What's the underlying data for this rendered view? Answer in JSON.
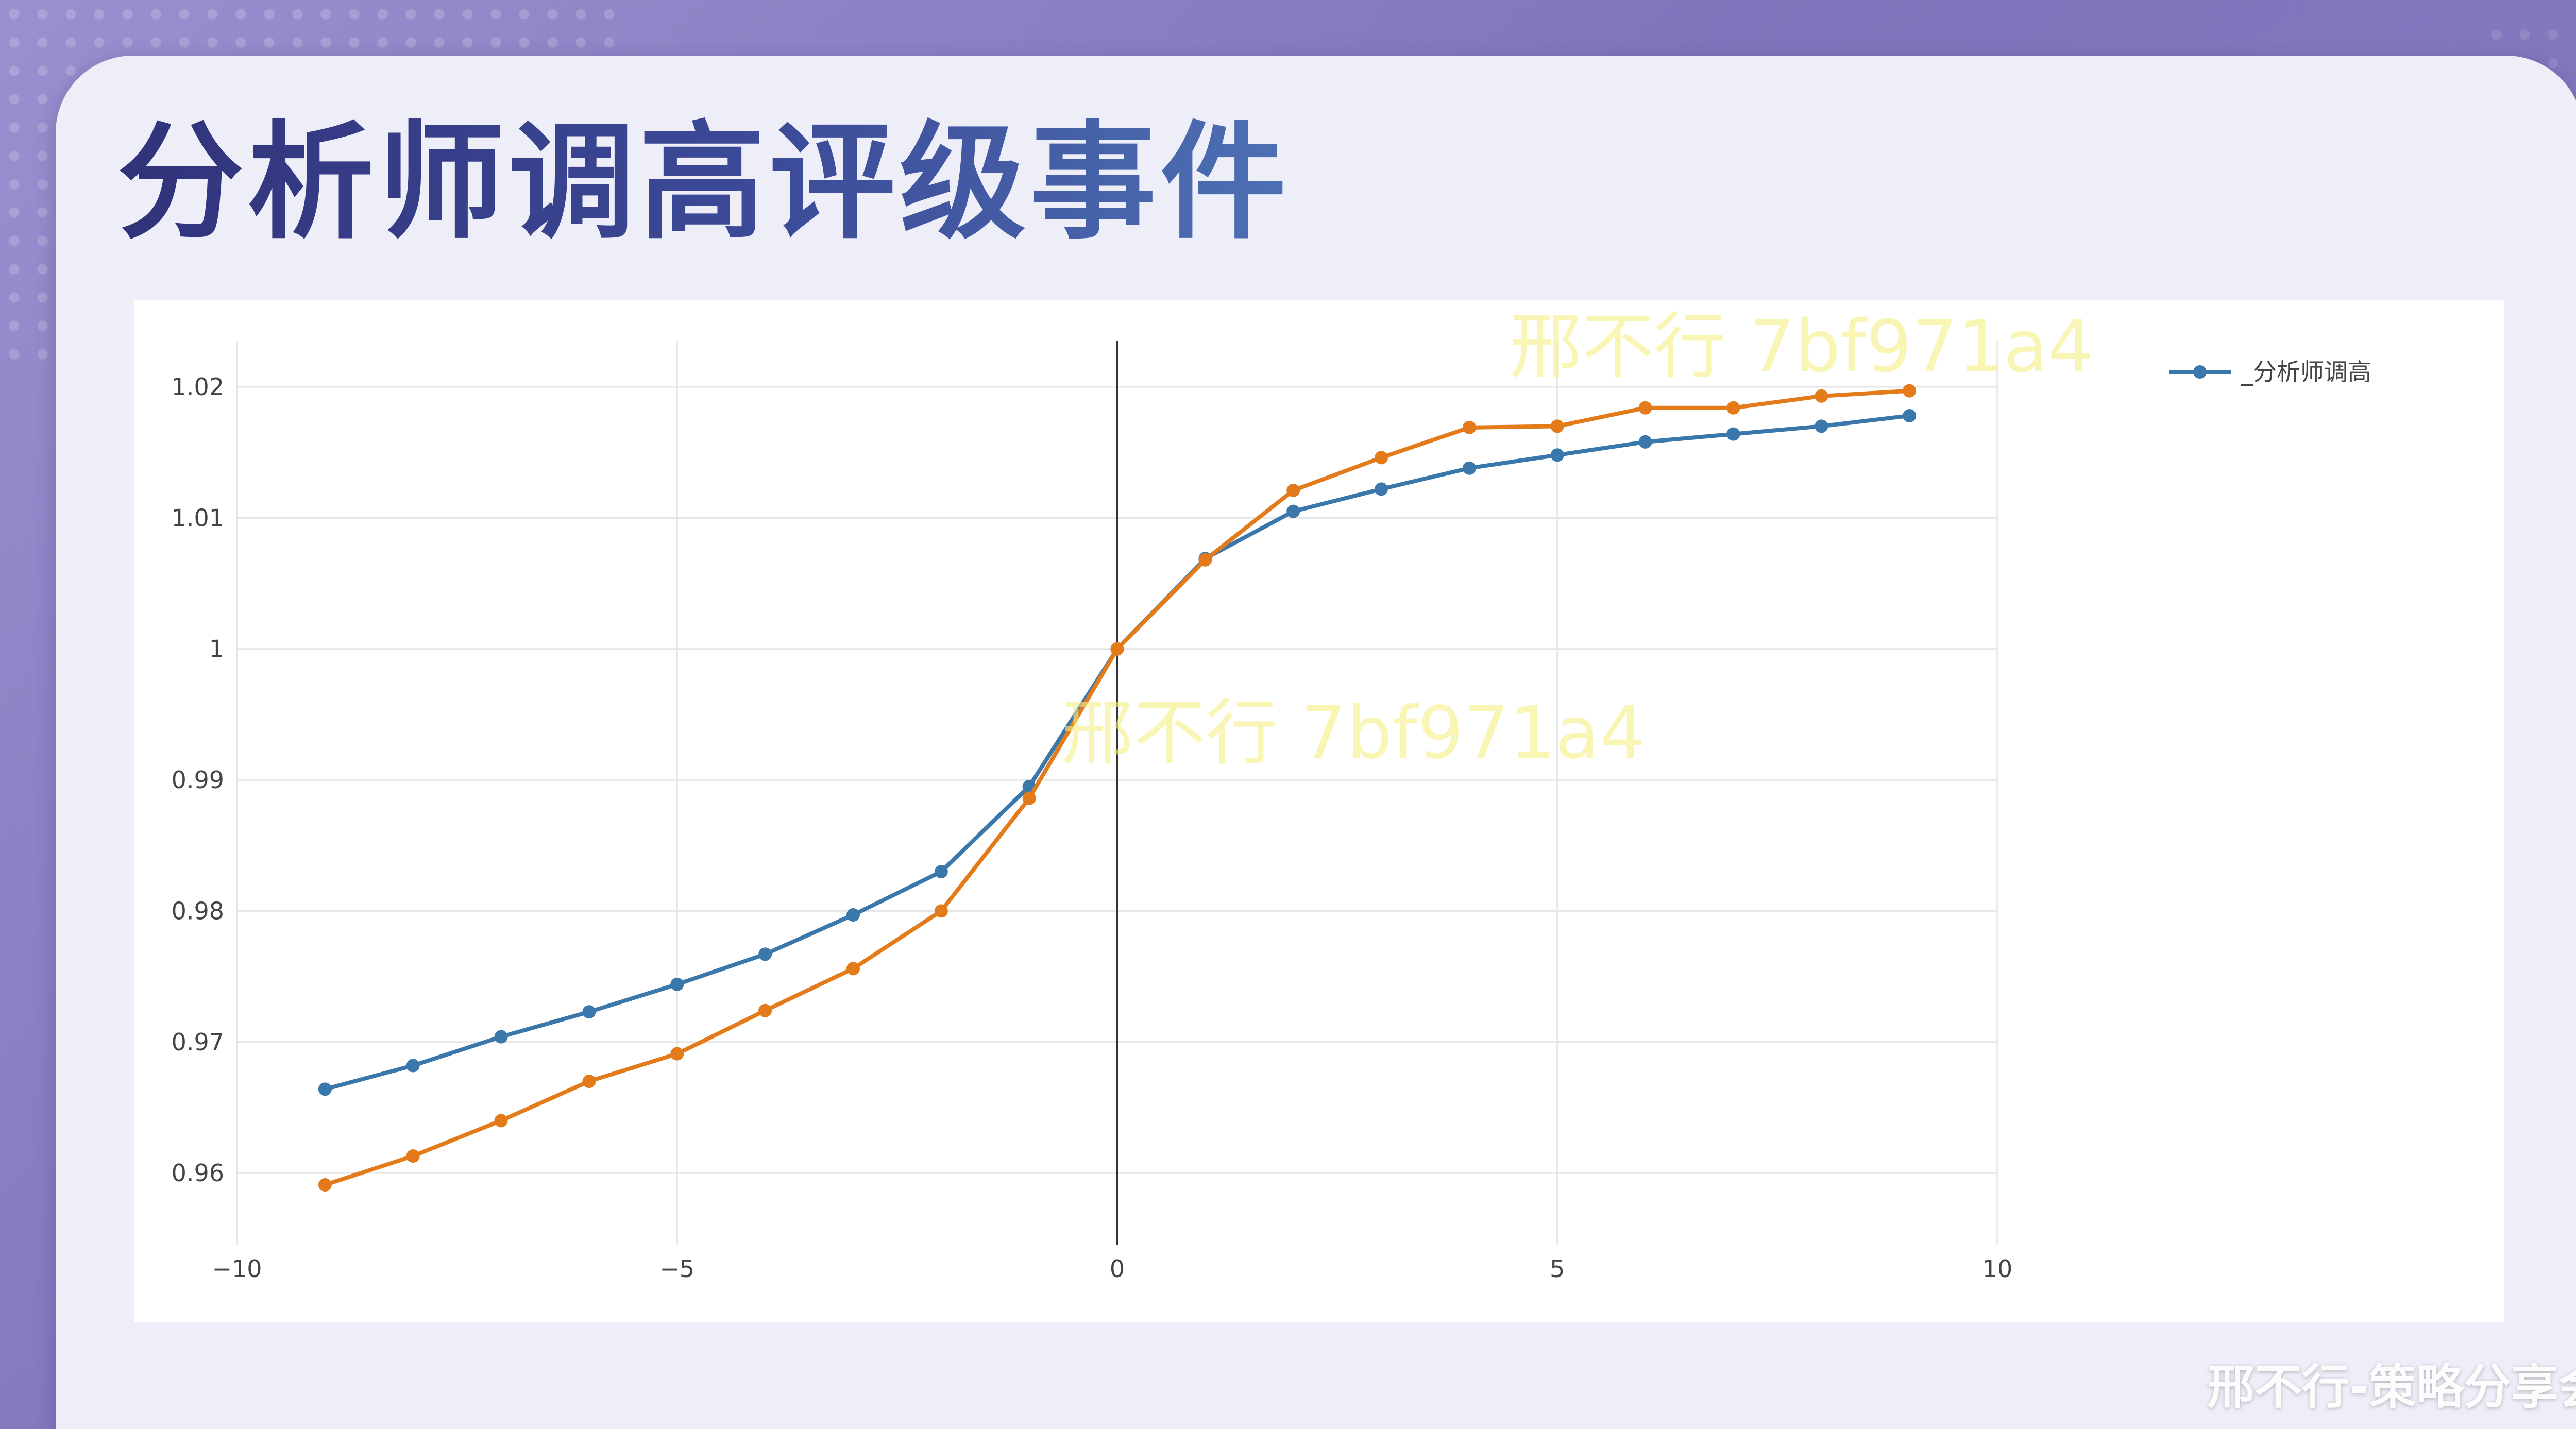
{
  "slide": {
    "title": "分析师调高评级事件",
    "watermarks": [
      "邢不行 7bf971a4",
      "邢不行 7bf971a4"
    ],
    "footer_brand": "邢不行-策略分享会"
  },
  "colors": {
    "series_blue": "#3a78ab",
    "series_orange": "#e37b1a",
    "zero_line": "#333333",
    "grid": "#e6e6e6",
    "title_start": "#31337a",
    "title_end": "#4d70b3"
  },
  "chart_data": {
    "type": "line",
    "title": "",
    "xlabel": "",
    "ylabel": "",
    "xlim": [
      -10,
      10
    ],
    "ylim": [
      0.9545,
      1.0235
    ],
    "grid": true,
    "legend_position": "top-right",
    "x_ticks": [
      -10,
      -5,
      0,
      5,
      10
    ],
    "x_tick_labels": [
      "−10",
      "−5",
      "0",
      "5",
      "10"
    ],
    "y_ticks": [
      0.96,
      0.97,
      0.98,
      0.99,
      1,
      1.01,
      1.02
    ],
    "y_tick_labels": [
      "0.96",
      "0.97",
      "0.98",
      "0.99",
      "1",
      "1.01",
      "1.02"
    ],
    "vertical_reference_line_x": 0,
    "x": [
      -9,
      -8,
      -7,
      -6,
      -5,
      -4,
      -3,
      -2,
      -1,
      0,
      1,
      2,
      3,
      4,
      5,
      6,
      7,
      8,
      9
    ],
    "series": [
      {
        "name": "_分析师调高",
        "color": "#3a78ab",
        "show_in_legend": true,
        "values": [
          0.9664,
          0.9682,
          0.9704,
          0.9723,
          0.9744,
          0.9767,
          0.9797,
          0.983,
          0.9895,
          1.0,
          1.0069,
          1.0105,
          1.0122,
          1.0138,
          1.0148,
          1.0158,
          1.0164,
          1.017,
          1.0178
        ]
      },
      {
        "color": "#e37b1a",
        "show_in_legend": false,
        "values": [
          0.9591,
          0.9613,
          0.964,
          0.967,
          0.9691,
          0.9724,
          0.9756,
          0.98,
          0.9886,
          1.0,
          1.0068,
          1.0121,
          1.0146,
          1.0169,
          1.017,
          1.0184,
          1.0184,
          1.0193,
          1.0197
        ]
      }
    ]
  }
}
